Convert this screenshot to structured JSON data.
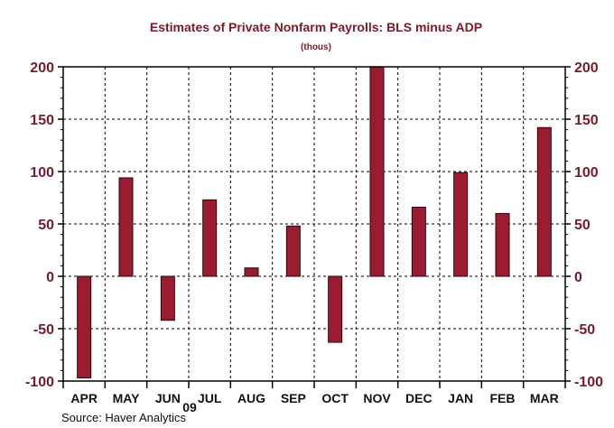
{
  "chart_data": {
    "type": "bar",
    "title": "Estimates of Private Nonfarm Payrolls: BLS minus ADP",
    "subtitle": "(thous)",
    "categories": [
      "APR",
      "MAY",
      "JUN",
      "JUL",
      "AUG",
      "SEP",
      "OCT",
      "NOV",
      "DEC",
      "JAN",
      "FEB",
      "MAR"
    ],
    "year_label": "09",
    "values": [
      -97,
      94,
      -42,
      73,
      8,
      48,
      -63,
      200,
      66,
      99,
      60,
      142
    ],
    "ylim": [
      -100,
      200
    ],
    "yticks": [
      "200",
      "150",
      "100",
      "50",
      "0",
      "-50",
      "-100"
    ],
    "ytick_values": [
      200,
      150,
      100,
      50,
      0,
      -50,
      -100
    ],
    "grid": true,
    "xlabel": "",
    "ylabel": "",
    "source": "Source: Haver Analytics",
    "colors": {
      "bar_fill": "#9b1b30",
      "bar_stroke": "#2a0a0a",
      "text_dark_red": "#7a1a2a"
    }
  }
}
